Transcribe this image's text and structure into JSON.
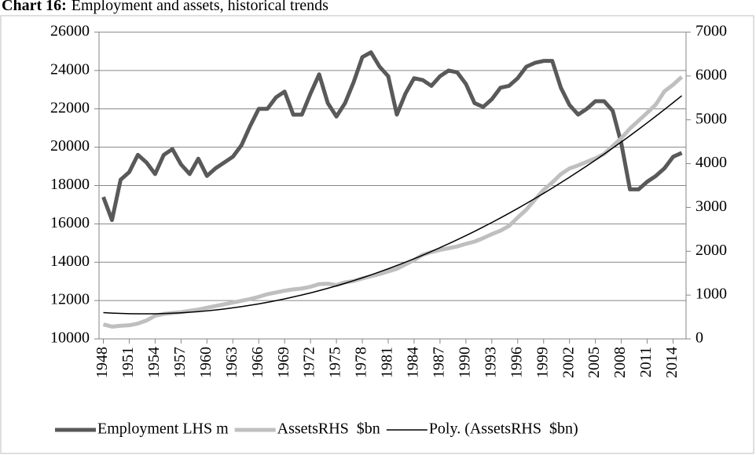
{
  "chart_data": {
    "type": "line",
    "caption_label": "Chart 16:",
    "title": "Employment and assets, historical trends",
    "x": [
      1948,
      1949,
      1950,
      1951,
      1952,
      1953,
      1954,
      1955,
      1956,
      1957,
      1958,
      1959,
      1960,
      1961,
      1962,
      1963,
      1964,
      1965,
      1966,
      1967,
      1968,
      1969,
      1970,
      1971,
      1972,
      1973,
      1974,
      1975,
      1976,
      1977,
      1978,
      1979,
      1980,
      1981,
      1982,
      1983,
      1984,
      1985,
      1986,
      1987,
      1988,
      1989,
      1990,
      1991,
      1992,
      1993,
      1994,
      1995,
      1996,
      1997,
      1998,
      1999,
      2000,
      2001,
      2002,
      2003,
      2004,
      2005,
      2006,
      2007,
      2008,
      2009,
      2010,
      2011,
      2012,
      2013,
      2014,
      2015
    ],
    "xlim": [
      1947.5,
      2015.5
    ],
    "xticks": [
      1948,
      1951,
      1954,
      1957,
      1960,
      1963,
      1966,
      1969,
      1972,
      1975,
      1978,
      1981,
      1984,
      1987,
      1990,
      1993,
      1996,
      1999,
      2002,
      2005,
      2008,
      2011,
      2014
    ],
    "ylim": [
      10000,
      26000
    ],
    "yticks": [
      10000,
      12000,
      14000,
      16000,
      18000,
      20000,
      22000,
      24000,
      26000
    ],
    "y2lim": [
      0,
      7000
    ],
    "y2ticks": [
      0,
      1000,
      2000,
      3000,
      4000,
      5000,
      6000,
      7000
    ],
    "grid": true,
    "legend": "bottom",
    "series": [
      {
        "name": "Employment LHS m",
        "color": "#595959",
        "values": [
          17400,
          16200,
          18300,
          18700,
          19600,
          19200,
          18600,
          19600,
          19900,
          19100,
          18600,
          19400,
          18500,
          18900,
          19200,
          19500,
          20100,
          21100,
          22000,
          22000,
          22600,
          22900,
          21700,
          21700,
          22800,
          23800,
          22300,
          21600,
          22300,
          23400,
          24700,
          24950,
          24200,
          23700,
          21700,
          22800,
          23600,
          23500,
          23200,
          23700,
          24000,
          23900,
          23300,
          22300,
          22100,
          22500,
          23100,
          23200,
          23600,
          24200,
          24400,
          24500,
          24500,
          23100,
          22200,
          21700,
          22000,
          22400,
          22400,
          21900,
          20200,
          17800,
          17800,
          18200,
          18500,
          18900,
          19500,
          19700
        ]
      },
      {
        "name": "AssetsRHS  $bn",
        "color": "#bfbfbf",
        "axis": "y2",
        "values": [
          330,
          280,
          300,
          310,
          350,
          420,
          530,
          570,
          590,
          610,
          640,
          670,
          710,
          750,
          790,
          830,
          870,
          910,
          960,
          1020,
          1060,
          1100,
          1130,
          1150,
          1190,
          1250,
          1260,
          1230,
          1290,
          1320,
          1380,
          1430,
          1480,
          1540,
          1600,
          1700,
          1800,
          1920,
          1980,
          2030,
          2070,
          2110,
          2170,
          2220,
          2300,
          2390,
          2470,
          2580,
          2770,
          2950,
          3180,
          3400,
          3570,
          3760,
          3890,
          3960,
          4040,
          4120,
          4220,
          4400,
          4580,
          4800,
          4980,
          5160,
          5350,
          5650,
          5800,
          5980
        ]
      },
      {
        "name": "Poly. (AssetsRHS  $bn)",
        "color": "#000000",
        "axis": "y2",
        "values": [
          600,
          589,
          581,
          576,
          573,
          572,
          574,
          579,
          586,
          596,
          608,
          623,
          641,
          661,
          683,
          709,
          736,
          767,
          799,
          835,
          873,
          913,
          957,
          1002,
          1050,
          1101,
          1155,
          1211,
          1269,
          1330,
          1394,
          1460,
          1529,
          1600,
          1674,
          1751,
          1830,
          1911,
          1995,
          2082,
          2171,
          2263,
          2357,
          2454,
          2554,
          2656,
          2761,
          2868,
          2978,
          3090,
          3205,
          3322,
          3442,
          3565,
          3690,
          3817,
          3948,
          4080,
          4216,
          4354,
          4494,
          4637,
          4783,
          4931,
          5082,
          5235,
          5391,
          5549
        ]
      }
    ]
  }
}
